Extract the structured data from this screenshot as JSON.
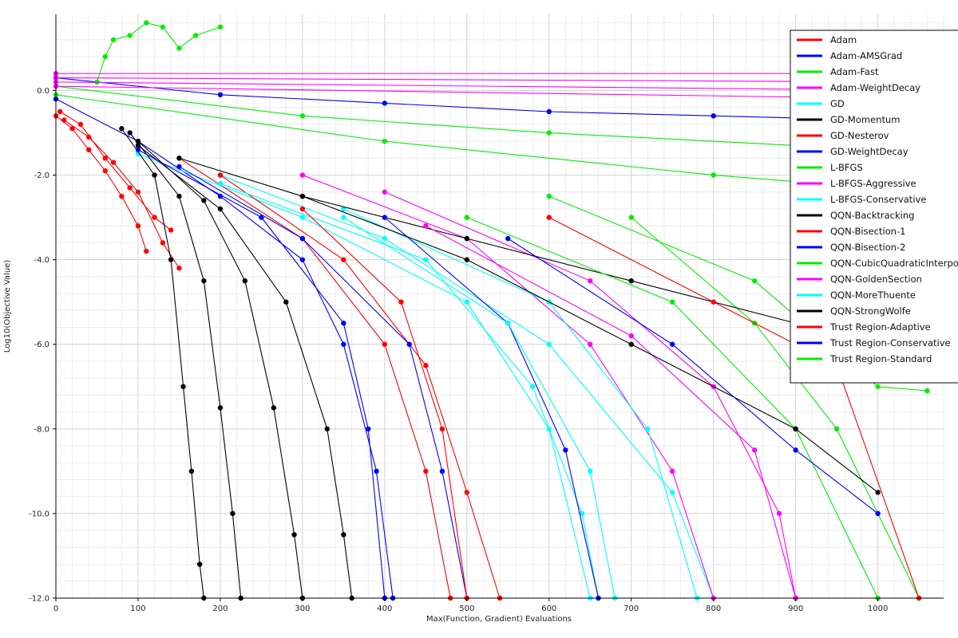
{
  "chart_data": {
    "type": "line",
    "title": "",
    "xlabel": "Max(Function, Gradient) Evaluations",
    "ylabel": "Log10(Objective Value)",
    "xlim": [
      0,
      1080
    ],
    "ylim": [
      -12.0,
      1.8
    ],
    "x_ticks": [
      0,
      100,
      200,
      300,
      400,
      500,
      600,
      700,
      800,
      900,
      1000
    ],
    "y_ticks": [
      0.0,
      -2.0,
      -4.0,
      -6.0,
      -8.0,
      -10.0,
      -12.0
    ],
    "y_tick_labels": [
      "0.0",
      "-2.0",
      "-4.0",
      "-6.0",
      "-8.0",
      "-10.0",
      "-12.0"
    ],
    "grid": true,
    "legend_position": "top-right",
    "series": [
      {
        "name": "Adam",
        "color": "#ff0000",
        "trajectories": [
          [
            [
              0,
              -0.6
            ],
            [
              20,
              -0.9
            ],
            [
              40,
              -1.4
            ],
            [
              60,
              -1.9
            ],
            [
              80,
              -2.5
            ],
            [
              100,
              -3.2
            ],
            [
              110,
              -3.8
            ]
          ],
          [
            [
              5,
              -0.5
            ],
            [
              30,
              -0.8
            ],
            [
              60,
              -1.6
            ],
            [
              90,
              -2.3
            ],
            [
              120,
              -3.0
            ],
            [
              140,
              -3.3
            ]
          ],
          [
            [
              10,
              -0.7
            ],
            [
              40,
              -1.1
            ],
            [
              70,
              -1.7
            ],
            [
              100,
              -2.4
            ],
            [
              130,
              -3.6
            ],
            [
              150,
              -4.2
            ]
          ]
        ]
      },
      {
        "name": "Adam-AMSGrad",
        "color": "#0000ff",
        "trajectories": [
          [
            [
              0,
              0.3
            ],
            [
              200,
              -0.1
            ],
            [
              400,
              -0.3
            ],
            [
              600,
              -0.5
            ],
            [
              800,
              -0.6
            ],
            [
              1000,
              -0.7
            ]
          ],
          [
            [
              0,
              -0.2
            ],
            [
              100,
              -1.2
            ],
            [
              200,
              -2.5
            ],
            [
              300,
              -4.0
            ],
            [
              350,
              -6.0
            ],
            [
              390,
              -9.0
            ],
            [
              410,
              -12.0
            ]
          ]
        ]
      },
      {
        "name": "Adam-Fast",
        "color": "#00ee00",
        "trajectories": [
          [
            [
              50,
              0.2
            ],
            [
              60,
              0.8
            ],
            [
              70,
              1.2
            ],
            [
              90,
              1.3
            ],
            [
              110,
              1.6
            ],
            [
              130,
              1.5
            ],
            [
              150,
              1.0
            ],
            [
              170,
              1.3
            ],
            [
              200,
              1.5
            ]
          ],
          [
            [
              0,
              0.1
            ],
            [
              300,
              -0.6
            ],
            [
              600,
              -1.0
            ],
            [
              900,
              -1.3
            ],
            [
              1000,
              -1.5
            ]
          ]
        ]
      },
      {
        "name": "Adam-WeightDecay",
        "color": "#ff00ff",
        "trajectories": [
          [
            [
              0,
              0.4
            ],
            [
              1060,
              0.4
            ]
          ],
          [
            [
              0,
              0.3
            ],
            [
              1060,
              0.2
            ]
          ],
          [
            [
              0,
              0.2
            ],
            [
              1060,
              0.0
            ]
          ],
          [
            [
              0,
              0.1
            ],
            [
              1060,
              -0.2
            ]
          ]
        ]
      },
      {
        "name": "GD",
        "color": "#00ffff",
        "trajectories": [
          [
            [
              100,
              -1.5
            ],
            [
              300,
              -3.0
            ],
            [
              500,
              -5.0
            ],
            [
              600,
              -8.0
            ],
            [
              650,
              -12.0
            ]
          ],
          [
            [
              200,
              -2.0
            ],
            [
              400,
              -3.5
            ],
            [
              600,
              -6.0
            ],
            [
              750,
              -9.5
            ],
            [
              800,
              -12.0
            ]
          ]
        ]
      },
      {
        "name": "GD-Momentum",
        "color": "#000000",
        "trajectories": [
          [
            [
              80,
              -0.9
            ],
            [
              120,
              -2.0
            ],
            [
              140,
              -4.0
            ],
            [
              155,
              -7.0
            ],
            [
              165,
              -9.0
            ],
            [
              175,
              -11.2
            ],
            [
              180,
              -12.0
            ]
          ],
          [
            [
              90,
              -1.0
            ],
            [
              150,
              -2.5
            ],
            [
              180,
              -4.5
            ],
            [
              200,
              -7.5
            ],
            [
              215,
              -10.0
            ],
            [
              225,
              -12.0
            ]
          ],
          [
            [
              100,
              -1.2
            ],
            [
              180,
              -2.6
            ],
            [
              230,
              -4.5
            ],
            [
              265,
              -7.5
            ],
            [
              290,
              -10.5
            ],
            [
              300,
              -12.0
            ]
          ],
          [
            [
              100,
              -1.3
            ],
            [
              200,
              -2.8
            ],
            [
              280,
              -5.0
            ],
            [
              330,
              -8.0
            ],
            [
              350,
              -10.5
            ],
            [
              360,
              -12.0
            ]
          ]
        ]
      },
      {
        "name": "GD-Nesterov",
        "color": "#ff0000",
        "trajectories": [
          [
            [
              150,
              -1.6
            ],
            [
              300,
              -3.5
            ],
            [
              400,
              -6.0
            ],
            [
              450,
              -9.0
            ],
            [
              480,
              -12.0
            ]
          ],
          [
            [
              200,
              -2.0
            ],
            [
              350,
              -4.0
            ],
            [
              450,
              -6.5
            ],
            [
              500,
              -9.5
            ],
            [
              540,
              -12.0
            ]
          ]
        ]
      },
      {
        "name": "GD-WeightDecay",
        "color": "#0000ff",
        "trajectories": [
          [
            [
              100,
              -1.4
            ],
            [
              250,
              -3.0
            ],
            [
              350,
              -5.5
            ],
            [
              380,
              -8.0
            ],
            [
              400,
              -12.0
            ]
          ],
          [
            [
              150,
              -1.8
            ],
            [
              300,
              -3.5
            ],
            [
              430,
              -6.0
            ],
            [
              470,
              -9.0
            ],
            [
              500,
              -12.0
            ]
          ]
        ]
      },
      {
        "name": "L-BFGS",
        "color": "#00ee00",
        "trajectories": [
          [
            [
              0,
              -0.1
            ],
            [
              400,
              -1.2
            ],
            [
              800,
              -2.0
            ],
            [
              1060,
              -2.4
            ]
          ],
          [
            [
              700,
              -3.0
            ],
            [
              850,
              -5.5
            ],
            [
              950,
              -8.0
            ],
            [
              1050,
              -12.0
            ]
          ]
        ]
      },
      {
        "name": "L-BFGS-Aggressive",
        "color": "#ff00ff",
        "trajectories": [
          [
            [
              300,
              -2.0
            ],
            [
              500,
              -3.5
            ],
            [
              650,
              -6.0
            ],
            [
              750,
              -9.0
            ],
            [
              800,
              -12.0
            ]
          ],
          [
            [
              400,
              -2.4
            ],
            [
              650,
              -4.5
            ],
            [
              800,
              -7.0
            ],
            [
              880,
              -10.0
            ],
            [
              900,
              -12.0
            ]
          ]
        ]
      },
      {
        "name": "L-BFGS-Conservative",
        "color": "#00ffff",
        "trajectories": [
          [
            [
              200,
              -2.2
            ],
            [
              450,
              -4.0
            ],
            [
              580,
              -7.0
            ],
            [
              640,
              -10.0
            ],
            [
              660,
              -12.0
            ]
          ],
          [
            [
              350,
              -2.8
            ],
            [
              600,
              -5.0
            ],
            [
              720,
              -8.0
            ],
            [
              780,
              -12.0
            ]
          ]
        ]
      },
      {
        "name": "QQN-Backtracking",
        "color": "#000000",
        "trajectories": [
          [
            [
              150,
              -1.6
            ],
            [
              300,
              -2.5
            ],
            [
              500,
              -3.5
            ],
            [
              700,
              -4.5
            ],
            [
              900,
              -5.5
            ],
            [
              1050,
              -6.5
            ]
          ]
        ]
      },
      {
        "name": "QQN-Bisection-1",
        "color": "#ff0000",
        "trajectories": [
          [
            [
              300,
              -2.8
            ],
            [
              420,
              -5.0
            ],
            [
              470,
              -8.0
            ],
            [
              500,
              -12.0
            ]
          ]
        ]
      },
      {
        "name": "QQN-Bisection-2",
        "color": "#0000ff",
        "trajectories": [
          [
            [
              400,
              -3.0
            ],
            [
              550,
              -5.5
            ],
            [
              620,
              -8.5
            ],
            [
              660,
              -12.0
            ]
          ]
        ]
      },
      {
        "name": "QQN-CubicQuadraticInterpolation",
        "color": "#00ee00",
        "trajectories": [
          [
            [
              500,
              -3.0
            ],
            [
              750,
              -5.0
            ],
            [
              900,
              -8.0
            ],
            [
              1000,
              -12.0
            ]
          ]
        ]
      },
      {
        "name": "QQN-GoldenSection",
        "color": "#ff00ff",
        "trajectories": [
          [
            [
              450,
              -3.2
            ],
            [
              700,
              -5.8
            ],
            [
              850,
              -8.5
            ],
            [
              900,
              -12.0
            ]
          ]
        ]
      },
      {
        "name": "QQN-MoreThuente",
        "color": "#00ffff",
        "trajectories": [
          [
            [
              350,
              -3.0
            ],
            [
              550,
              -5.5
            ],
            [
              650,
              -9.0
            ],
            [
              680,
              -12.0
            ]
          ]
        ]
      },
      {
        "name": "QQN-StrongWolfe",
        "color": "#000000",
        "trajectories": [
          [
            [
              300,
              -2.5
            ],
            [
              500,
              -4.0
            ],
            [
              700,
              -6.0
            ],
            [
              900,
              -8.0
            ],
            [
              1000,
              -9.5
            ]
          ]
        ]
      },
      {
        "name": "Trust Region-Adaptive",
        "color": "#ff0000",
        "trajectories": [
          [
            [
              600,
              -3.0
            ],
            [
              800,
              -5.0
            ],
            [
              950,
              -6.5
            ],
            [
              1050,
              -12.0
            ]
          ]
        ]
      },
      {
        "name": "Trust Region-Conservative",
        "color": "#0000ff",
        "trajectories": [
          [
            [
              550,
              -3.5
            ],
            [
              750,
              -6.0
            ],
            [
              900,
              -8.5
            ],
            [
              1000,
              -10.0
            ]
          ]
        ]
      },
      {
        "name": "Trust Region-Standard",
        "color": "#00ee00",
        "trajectories": [
          [
            [
              600,
              -2.5
            ],
            [
              850,
              -4.5
            ],
            [
              1000,
              -7.0
            ],
            [
              1060,
              -7.1
            ]
          ]
        ]
      }
    ]
  }
}
